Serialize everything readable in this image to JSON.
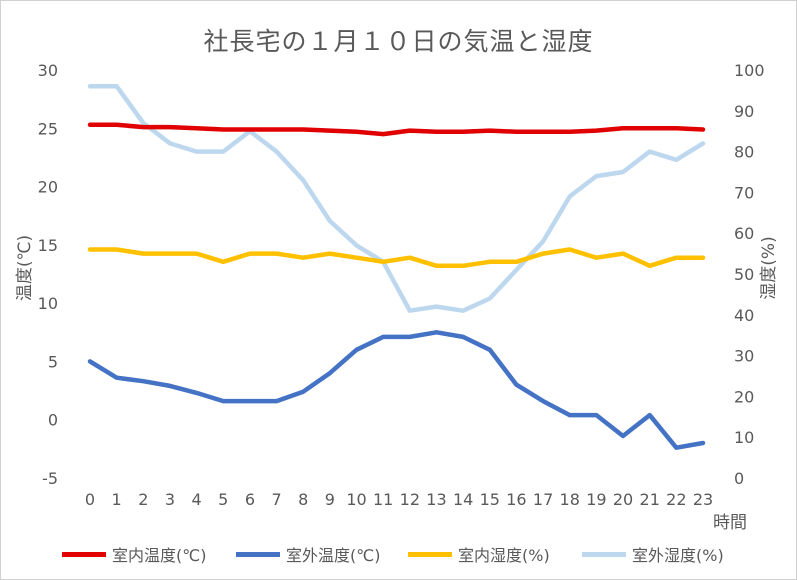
{
  "chart_data": {
    "type": "line",
    "title": "社長宅の１月１０日の気温と湿度",
    "xlabel": "時間",
    "ylabel_left": "温度(℃)",
    "ylabel_right": "湿度(%)",
    "x": [
      "0",
      "1",
      "2",
      "3",
      "4",
      "5",
      "6",
      "7",
      "8",
      "9",
      "10",
      "11",
      "12",
      "13",
      "14",
      "15",
      "16",
      "17",
      "18",
      "19",
      "20",
      "21",
      "22",
      "23"
    ],
    "y_left": {
      "min": -5,
      "max": 30,
      "ticks": [
        "-5",
        "0",
        "5",
        "10",
        "15",
        "20",
        "25",
        "30"
      ]
    },
    "y_right": {
      "min": 0,
      "max": 100,
      "ticks": [
        "0",
        "10",
        "20",
        "30",
        "40",
        "50",
        "60",
        "70",
        "80",
        "90",
        "100"
      ]
    },
    "grid": false,
    "legend_position": "bottom",
    "series": [
      {
        "name": "室内温度(℃)",
        "axis": "left",
        "color": "#e00000",
        "values": [
          25.3,
          25.3,
          25.1,
          25.1,
          25.0,
          24.9,
          24.9,
          24.9,
          24.9,
          24.8,
          24.7,
          24.5,
          24.8,
          24.7,
          24.7,
          24.8,
          24.7,
          24.7,
          24.7,
          24.8,
          25.0,
          25.0,
          25.0,
          24.9
        ]
      },
      {
        "name": "室外温度(℃)",
        "axis": "left",
        "color": "#4472c4",
        "values": [
          5.0,
          3.6,
          3.3,
          2.9,
          2.3,
          1.6,
          1.6,
          1.6,
          2.4,
          4.0,
          6.0,
          7.1,
          7.1,
          7.5,
          7.1,
          6.0,
          3.0,
          1.6,
          0.4,
          0.4,
          -1.4,
          0.4,
          -2.4,
          -2.0
        ]
      },
      {
        "name": "室内湿度(%)",
        "axis": "right",
        "color": "#ffc000",
        "values": [
          56,
          56,
          55,
          55,
          55,
          53,
          55,
          55,
          54,
          55,
          54,
          53,
          54,
          52,
          52,
          53,
          53,
          55,
          56,
          54,
          55,
          52,
          54,
          54
        ]
      },
      {
        "name": "室外湿度(%)",
        "axis": "right",
        "color": "#bdd7ee",
        "values": [
          96,
          96,
          87,
          82,
          80,
          80,
          85,
          80,
          73,
          63,
          57,
          53,
          41,
          42,
          41,
          44,
          51,
          58,
          69,
          74,
          75,
          80,
          78,
          82
        ]
      }
    ]
  }
}
